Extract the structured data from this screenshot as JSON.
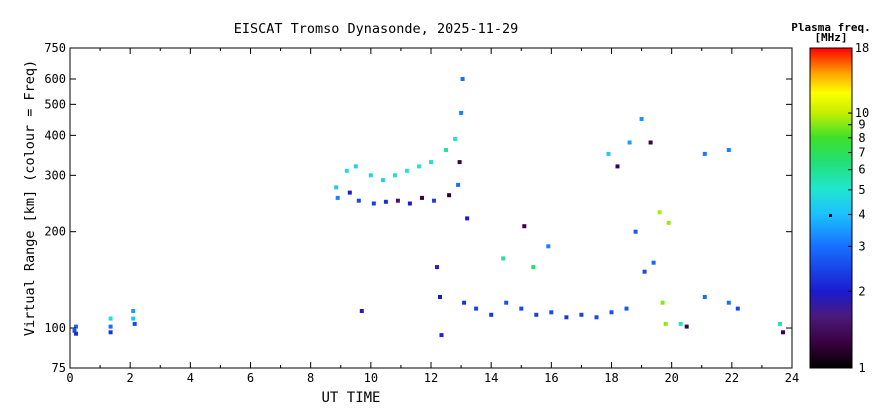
{
  "chart_data": {
    "type": "scatter",
    "title": "EISCAT Tromso Dynasonde, 2025-11-29",
    "xlabel": "UT TIME",
    "ylabel": "Virtual Range [km] (colour = Freq)",
    "xlim": [
      0,
      24
    ],
    "ylim": [
      75,
      750
    ],
    "yscale": "log",
    "x_ticks": [
      "0",
      "2",
      "4",
      "6",
      "8",
      "10",
      "12",
      "14",
      "16",
      "18",
      "20",
      "22",
      "24"
    ],
    "x_tick_values": [
      0,
      2,
      4,
      6,
      8,
      10,
      12,
      14,
      16,
      18,
      20,
      22,
      24
    ],
    "y_ticks": [
      "75",
      "100",
      "200",
      "300",
      "400",
      "500",
      "600",
      "750"
    ],
    "y_tick_values": [
      75,
      100,
      200,
      300,
      400,
      500,
      600,
      750
    ],
    "grid": false,
    "colorbar": {
      "title_line1": "Plasma freq.",
      "title_line2": "[MHz]",
      "range": [
        1,
        18
      ],
      "scale": "log",
      "tick_labels": [
        "1",
        "2",
        "3",
        "4",
        "5",
        "6",
        "7",
        "8",
        "9",
        "10",
        "18"
      ],
      "tick_values": [
        1,
        2,
        3,
        4,
        5,
        6,
        7,
        8,
        9,
        10,
        18
      ]
    },
    "series": [
      {
        "points": [
          [
            0.15,
            98,
            2.6
          ],
          [
            0.2,
            101,
            2.9
          ],
          [
            0.2,
            96,
            2.2
          ],
          [
            1.35,
            107,
            4.8
          ],
          [
            1.35,
            101,
            3.0
          ],
          [
            1.35,
            97,
            2.3
          ],
          [
            2.1,
            113,
            3.5
          ],
          [
            2.1,
            107,
            4.2
          ],
          [
            2.15,
            103,
            2.5
          ],
          [
            8.85,
            275,
            4.2
          ],
          [
            8.9,
            255,
            3.2
          ],
          [
            9.2,
            310,
            4.8
          ],
          [
            9.3,
            265,
            2.0
          ],
          [
            9.5,
            320,
            4.5
          ],
          [
            9.6,
            250,
            2.5
          ],
          [
            9.7,
            113,
            1.9
          ],
          [
            10.0,
            300,
            4.6
          ],
          [
            10.1,
            245,
            2.4
          ],
          [
            10.4,
            290,
            4.5
          ],
          [
            10.5,
            248,
            2.2
          ],
          [
            10.8,
            300,
            4.7
          ],
          [
            10.9,
            250,
            1.5
          ],
          [
            11.2,
            310,
            5.0
          ],
          [
            11.3,
            245,
            2.0
          ],
          [
            11.6,
            320,
            5.1
          ],
          [
            11.7,
            255,
            1.3
          ],
          [
            12.0,
            330,
            5.3
          ],
          [
            12.1,
            250,
            2.4
          ],
          [
            12.2,
            155,
            1.8
          ],
          [
            12.3,
            125,
            2.0
          ],
          [
            12.35,
            95,
            2.1
          ],
          [
            12.5,
            360,
            5.6
          ],
          [
            12.6,
            260,
            1.2
          ],
          [
            12.8,
            390,
            5.2
          ],
          [
            12.9,
            280,
            3.0
          ],
          [
            12.95,
            330,
            1.3
          ],
          [
            13.0,
            470,
            3.2
          ],
          [
            13.05,
            600,
            3.0
          ],
          [
            13.1,
            120,
            2.2
          ],
          [
            13.2,
            220,
            2.0
          ],
          [
            13.5,
            115,
            2.4
          ],
          [
            14.0,
            110,
            2.3
          ],
          [
            14.4,
            165,
            5.8
          ],
          [
            14.5,
            120,
            2.6
          ],
          [
            15.0,
            115,
            2.5
          ],
          [
            15.1,
            208,
            1.3
          ],
          [
            15.4,
            155,
            6.5
          ],
          [
            15.5,
            110,
            2.4
          ],
          [
            15.9,
            180,
            3.2
          ],
          [
            16.0,
            112,
            2.5
          ],
          [
            16.5,
            108,
            2.3
          ],
          [
            17.0,
            110,
            2.4
          ],
          [
            17.5,
            108,
            2.5
          ],
          [
            17.9,
            350,
            4.2
          ],
          [
            18.0,
            112,
            2.6
          ],
          [
            18.2,
            320,
            1.3
          ],
          [
            18.5,
            115,
            2.7
          ],
          [
            18.6,
            380,
            3.5
          ],
          [
            18.8,
            200,
            2.7
          ],
          [
            19.0,
            450,
            3.4
          ],
          [
            19.1,
            150,
            2.5
          ],
          [
            19.3,
            380,
            1.3
          ],
          [
            19.4,
            160,
            2.9
          ],
          [
            19.6,
            230,
            9.5
          ],
          [
            19.7,
            120,
            9.0
          ],
          [
            19.8,
            103,
            9.2
          ],
          [
            19.9,
            213,
            9.3
          ],
          [
            20.3,
            103,
            5.2
          ],
          [
            20.5,
            101,
            1.3
          ],
          [
            21.1,
            125,
            3.0
          ],
          [
            21.1,
            350,
            3.1
          ],
          [
            21.9,
            120,
            3.0
          ],
          [
            21.9,
            360,
            3.2
          ],
          [
            22.2,
            115,
            2.5
          ],
          [
            23.6,
            103,
            5.5
          ],
          [
            23.7,
            97,
            1.3
          ]
        ]
      }
    ]
  }
}
